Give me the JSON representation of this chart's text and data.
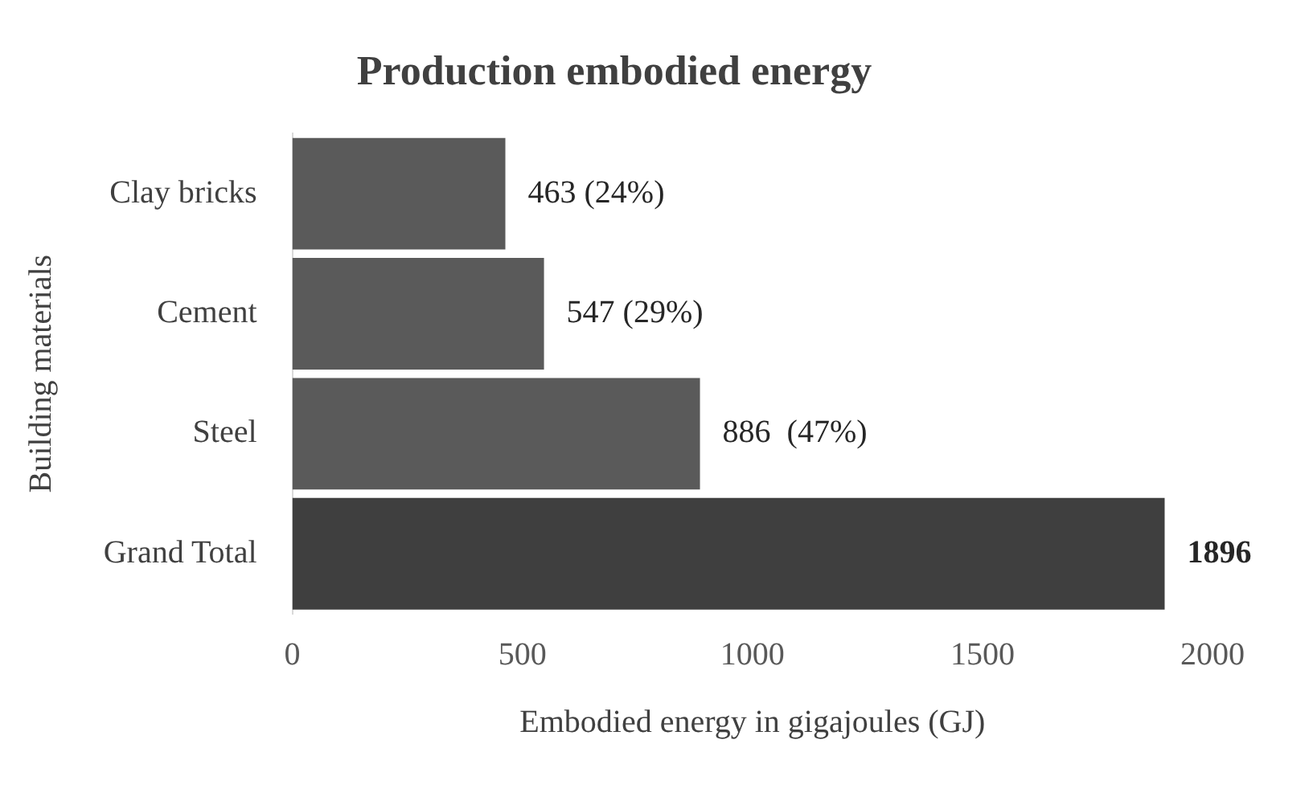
{
  "chart_data": {
    "type": "bar",
    "orientation": "horizontal",
    "title": "Production embodied energy",
    "xlabel": "Embodied energy in gigajoules (GJ)",
    "ylabel": "Building materials",
    "categories": [
      "Clay bricks",
      "Cement",
      "Steel",
      "Grand Total"
    ],
    "values": [
      463,
      547,
      886,
      1896
    ],
    "colors": [
      "#5a5a5a",
      "#5a5a5a",
      "#5a5a5a",
      "#3f3f3f"
    ],
    "value_labels": [
      "463 (24%)",
      "547 (29%)",
      "886  (47%)",
      "1896"
    ],
    "xlim": [
      0,
      2000
    ],
    "xticks": [
      0,
      500,
      1000,
      1500,
      2000
    ],
    "grid": false,
    "legend": false
  }
}
